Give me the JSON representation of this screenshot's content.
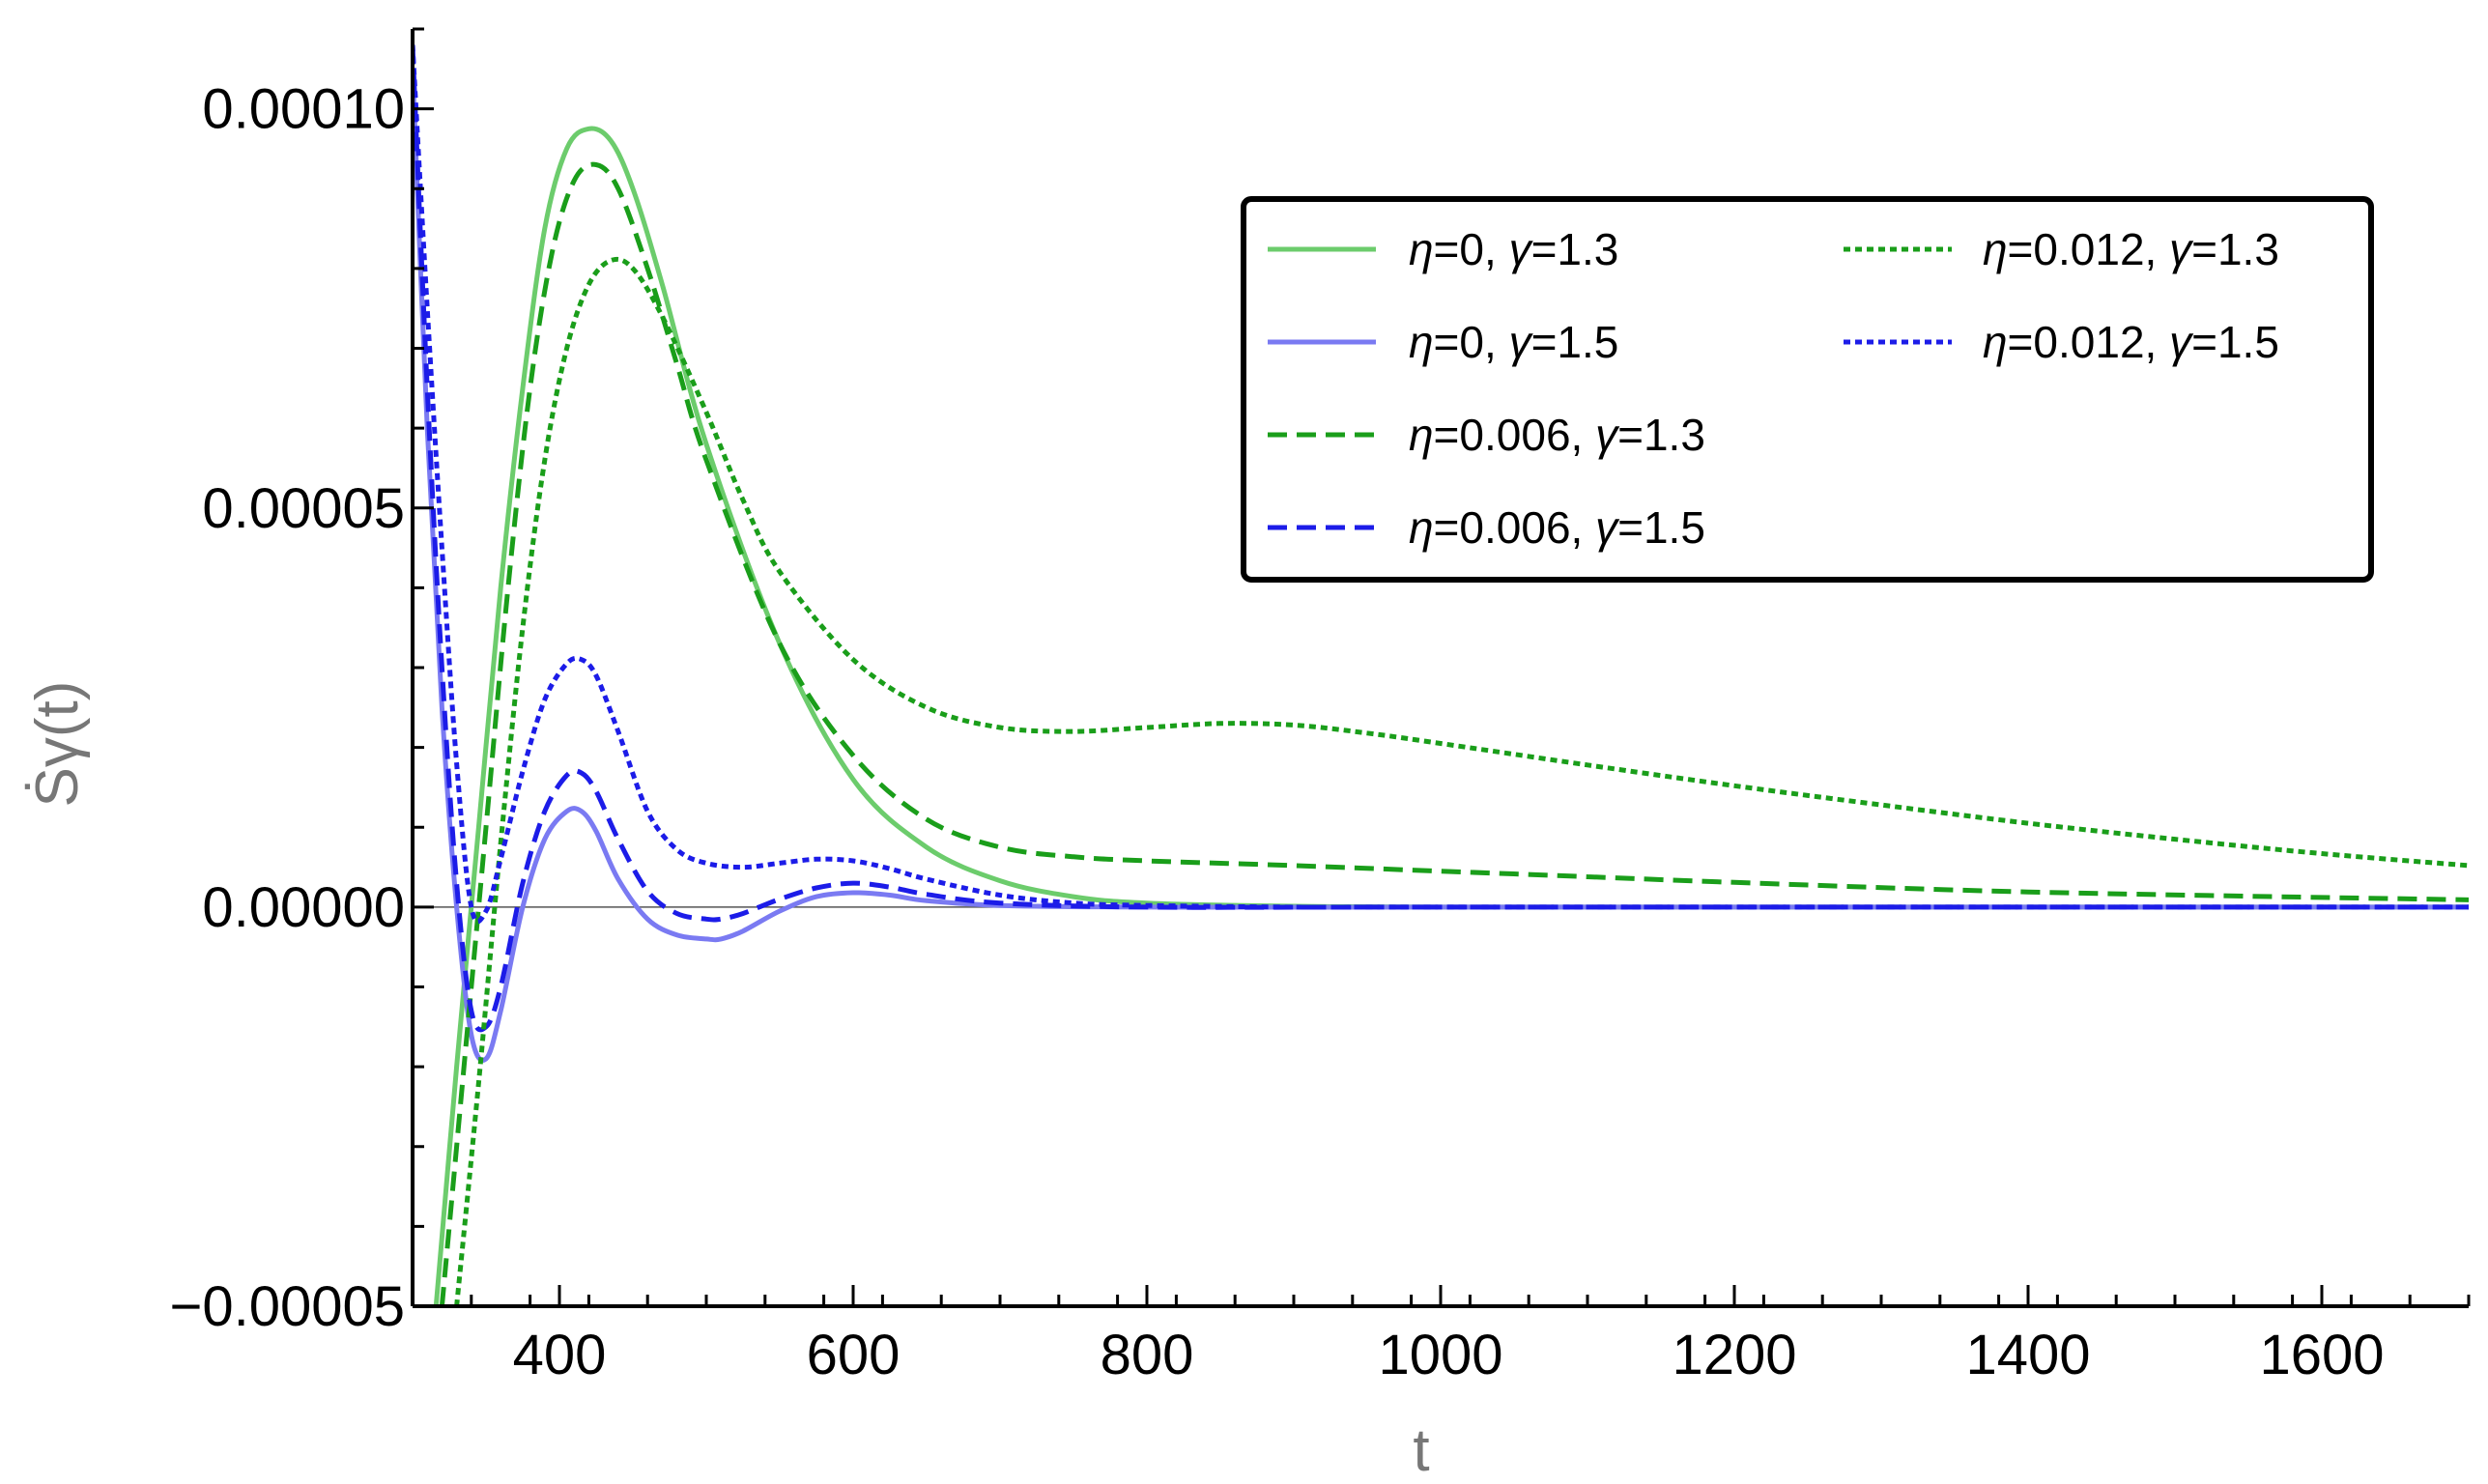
{
  "chart_data": {
    "type": "line",
    "title": "",
    "xlabel": "t",
    "ylabel": "Ṡγ(t)",
    "xlim": [
      300,
      1700
    ],
    "ylim": [
      -5e-05,
      0.00011
    ],
    "x_ticks": [
      400,
      600,
      800,
      1000,
      1200,
      1400,
      1600
    ],
    "x_tick_labels": [
      "400",
      "600",
      "800",
      "1000",
      "1200",
      "1400",
      "1600"
    ],
    "y_ticks": [
      -5e-05,
      0.0,
      5e-05,
      0.0001
    ],
    "y_tick_labels": [
      "−0.00005",
      "0.00000",
      "0.00005",
      "0.00010"
    ],
    "grid": false,
    "legend_position": "top-right",
    "series": [
      {
        "name": "η=0, γ=1.3",
        "eta": "0",
        "gamma": "1.3",
        "color": "#6ccc6c",
        "dash": "solid",
        "x": [
          316,
          330,
          345,
          360,
          375,
          390,
          405,
          420,
          435,
          450,
          470,
          500,
          550,
          600,
          650,
          700,
          750,
          800,
          900,
          1000,
          1200,
          1400,
          1700
        ],
        "y": [
          -5e-05,
          -2e-05,
          1e-05,
          4e-05,
          6.5e-05,
          8.5e-05,
          9.5e-05,
          9.75e-05,
          9.6e-05,
          9e-05,
          7.8e-05,
          5.8e-05,
          3.3e-05,
          1.6e-05,
          7.5e-06,
          3.3e-06,
          1.3e-06,
          5e-07,
          1e-07,
          0.0,
          0.0,
          0.0,
          0.0
        ]
      },
      {
        "name": "η=0, γ=1.5",
        "eta": "0",
        "gamma": "1.5",
        "color": "#7a7af2",
        "dash": "solid",
        "x": [
          300,
          310,
          320,
          330,
          340,
          350,
          360,
          375,
          390,
          405,
          415,
          425,
          440,
          460,
          480,
          500,
          510,
          525,
          550,
          575,
          600,
          625,
          650,
          700,
          800,
          1000,
          1700
        ],
        "y": [
          0.000105,
          6e-05,
          2.5e-05,
          0.0,
          -1.6e-05,
          -1.9e-05,
          -1.3e-05,
          0.0,
          8.5e-06,
          1.2e-05,
          1.2e-05,
          9.5e-06,
          3.5e-06,
          -1.5e-06,
          -3.5e-06,
          -4e-06,
          -4e-06,
          -3e-06,
          -5e-07,
          1.3e-06,
          1.8e-06,
          1.5e-06,
          8e-07,
          2e-07,
          0.0,
          0.0,
          0.0
        ]
      },
      {
        "name": "η=0.006, γ=1.3",
        "eta": "0.006",
        "gamma": "1.3",
        "color": "#1a9e1a",
        "dash": "dashed",
        "x": [
          320,
          335,
          350,
          365,
          380,
          395,
          410,
          425,
          440,
          460,
          480,
          500,
          550,
          600,
          650,
          700,
          750,
          800,
          900,
          1000,
          1100,
          1200,
          1400,
          1700
        ],
        "y": [
          -5e-05,
          -2e-05,
          1e-05,
          4e-05,
          6.5e-05,
          8.2e-05,
          9.1e-05,
          9.3e-05,
          9e-05,
          8e-05,
          6.8e-05,
          5.6e-05,
          3.3e-05,
          1.9e-05,
          1.1e-05,
          7.5e-06,
          6.3e-06,
          5.8e-06,
          5.2e-06,
          4.5e-06,
          3.8e-06,
          3.1e-06,
          1.9e-06,
          9e-07
        ]
      },
      {
        "name": "η=0.006, γ=1.5",
        "eta": "0.006",
        "gamma": "1.5",
        "color": "#1c1ce8",
        "dash": "dashed",
        "x": [
          300,
          310,
          320,
          330,
          340,
          350,
          360,
          375,
          390,
          405,
          415,
          425,
          440,
          460,
          480,
          500,
          510,
          525,
          550,
          575,
          600,
          625,
          650,
          700,
          800,
          1000,
          1700
        ],
        "y": [
          0.000108,
          6.5e-05,
          3e-05,
          3e-06,
          -1.3e-05,
          -1.5e-05,
          -1e-05,
          3e-06,
          1.2e-05,
          1.65e-05,
          1.68e-05,
          1.45e-05,
          8.5e-06,
          2e-06,
          -8e-07,
          -1.5e-06,
          -1.5e-06,
          -8e-07,
          1e-06,
          2.4e-06,
          3e-06,
          2.5e-06,
          1.6e-06,
          5e-07,
          0.0,
          0.0,
          0.0
        ]
      },
      {
        "name": "η=0.012, γ=1.3",
        "eta": "0.012",
        "gamma": "1.3",
        "color": "#1a9e1a",
        "dash": "dotted",
        "x": [
          330,
          345,
          360,
          375,
          390,
          405,
          420,
          435,
          450,
          470,
          500,
          525,
          550,
          600,
          650,
          700,
          750,
          800,
          850,
          900,
          950,
          1000,
          1100,
          1200,
          1300,
          1400,
          1500,
          1600,
          1700
        ],
        "y": [
          -5e-05,
          -2.2e-05,
          8e-06,
          3.5e-05,
          5.6e-05,
          7e-05,
          7.8e-05,
          8.1e-05,
          8e-05,
          7.4e-05,
          6.2e-05,
          5.1e-05,
          4.2e-05,
          3.1e-05,
          2.5e-05,
          2.25e-05,
          2.2e-05,
          2.25e-05,
          2.3e-05,
          2.28e-05,
          2.18e-05,
          2.05e-05,
          1.78e-05,
          1.52e-05,
          1.28e-05,
          1.05e-05,
          8.5e-06,
          6.7e-06,
          5.2e-06
        ]
      },
      {
        "name": "η=0.012, γ=1.5",
        "eta": "0.012",
        "gamma": "1.5",
        "color": "#1c1ce8",
        "dash": "dotted",
        "x": [
          300,
          310,
          320,
          330,
          340,
          350,
          360,
          375,
          390,
          405,
          415,
          425,
          440,
          460,
          480,
          500,
          525,
          550,
          575,
          600,
          625,
          650,
          700,
          750,
          800,
          900,
          1000,
          1700
        ],
        "y": [
          0.000108,
          7.5e-05,
          4.5e-05,
          1.8e-05,
          0.0,
          -5e-07,
          6e-06,
          1.7e-05,
          2.6e-05,
          3.05e-05,
          3.1e-05,
          2.9e-05,
          2.2e-05,
          1.2e-05,
          7.2e-06,
          5.5e-06,
          5e-06,
          5.5e-06,
          6e-06,
          5.8e-06,
          4.8e-06,
          3.5e-06,
          1.5e-06,
          5e-07,
          2e-07,
          0.0,
          0.0,
          0.0
        ]
      }
    ]
  }
}
